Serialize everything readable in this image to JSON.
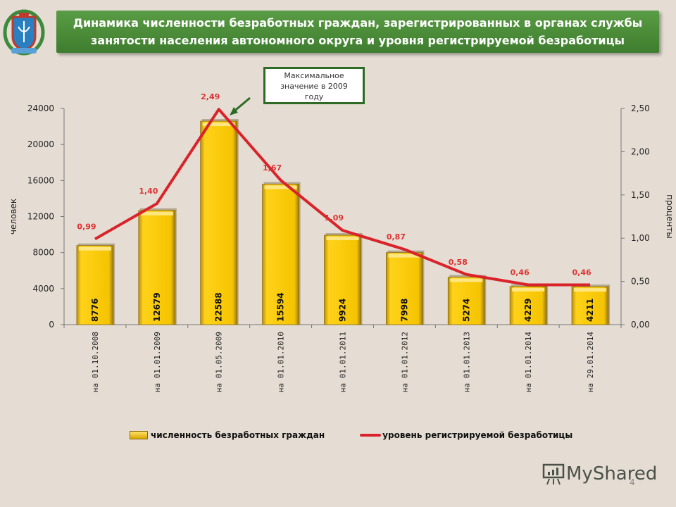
{
  "title": {
    "line1": "Динамика численности безработных граждан, зарегистрированных в органах службы",
    "line2": "занятости населения автономного округа и уровня регистрируемой безработицы"
  },
  "callout": {
    "line1": "Максимальное",
    "line2": "значение в 2009",
    "line3": "году"
  },
  "legend": {
    "bars": "численность безработных граждан",
    "line": "уровень регистрируемой безработицы"
  },
  "watermark": "MyShared",
  "page_number": "4",
  "colors": {
    "bar": "#f5c400",
    "line": "#d9232b",
    "banner": "#4a8a38",
    "callout_border": "#2e6b25"
  },
  "chart_data": {
    "type": "bar+line",
    "title": "Динамика численности безработных граждан, зарегистрированных в органах службы занятости населения автономного округа и уровня регистрируемой безработицы",
    "categories": [
      "на 01.10.2008",
      "на 01.01.2009",
      "на 01.05.2009",
      "на 01.01.2010",
      "на 01.01.2011",
      "на 01.01.2012",
      "на 01.01.2013",
      "на 01.01.2014",
      "на 29.01.2014"
    ],
    "series": [
      {
        "name": "численность безработных граждан",
        "axis": "left",
        "type": "bar",
        "values": [
          8776,
          12679,
          22588,
          15594,
          9924,
          7998,
          5274,
          4229,
          4211
        ],
        "labels": [
          "8776",
          "12679",
          "22588",
          "15594",
          "9924",
          "7998",
          "5274",
          "4229",
          "4211"
        ]
      },
      {
        "name": "уровень регистрируемой безработицы",
        "axis": "right",
        "type": "line",
        "values": [
          0.99,
          1.4,
          2.49,
          1.67,
          1.09,
          0.87,
          0.58,
          0.46,
          0.46
        ],
        "labels": [
          "0,99",
          "1,40",
          "2,49",
          "1,67",
          "1,09",
          "0,87",
          "0,58",
          "0,46",
          "0,46"
        ]
      }
    ],
    "ylabel": "человек",
    "y2label": "проценты",
    "ylim": [
      0,
      24000
    ],
    "y2lim": [
      0,
      2.5
    ],
    "yticks": [
      "0",
      "4000",
      "8000",
      "12000",
      "16000",
      "20000",
      "24000"
    ],
    "y2ticks": [
      "0,00",
      "0,50",
      "1,00",
      "1,50",
      "2,00",
      "2,50"
    ],
    "annotation": "Максимальное значение в 2009 году",
    "legend_position": "bottom"
  }
}
